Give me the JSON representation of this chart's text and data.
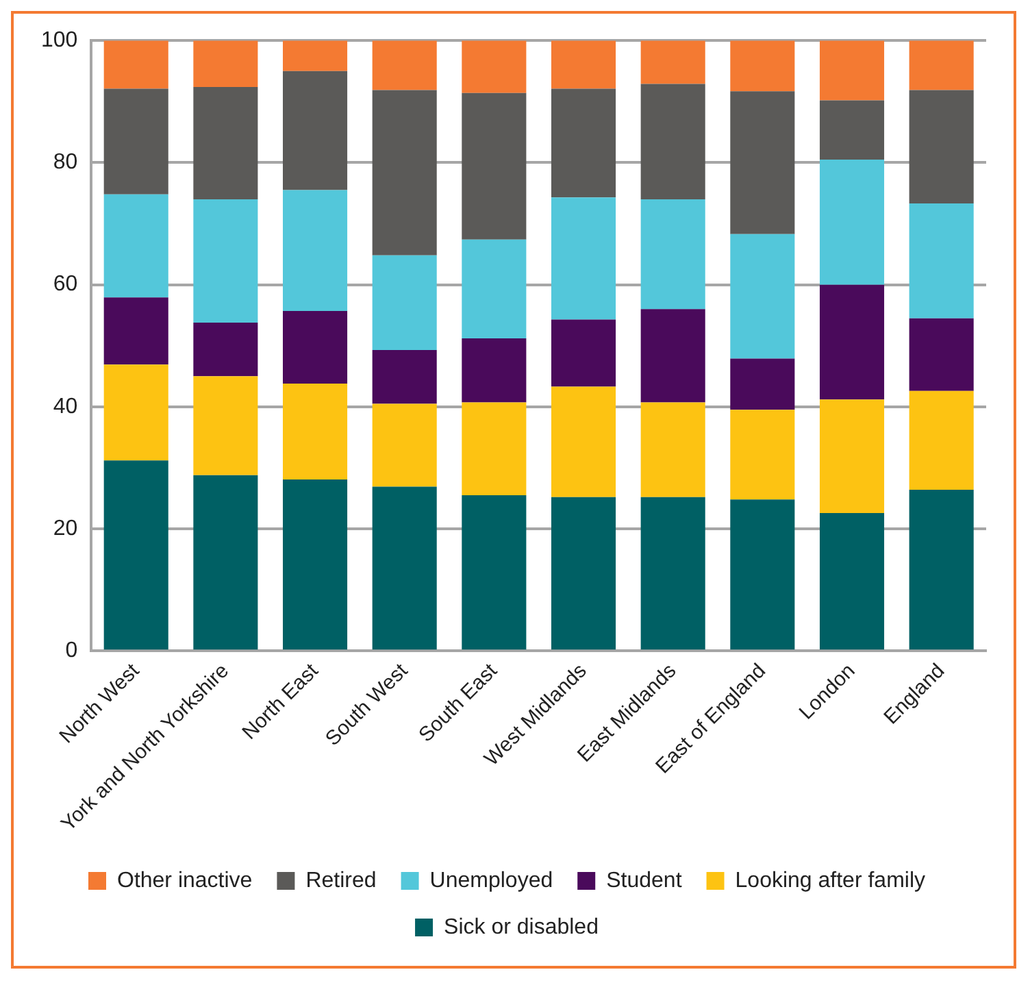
{
  "chart_data": {
    "type": "bar",
    "stacked": true,
    "categories": [
      "North West",
      "York and North Yorkshire",
      "North East",
      "South West",
      "South East",
      "West Midlands",
      "East Midlands",
      "East of England",
      "London",
      "England"
    ],
    "series": [
      {
        "name": "Sick or disabled",
        "color": "#006064",
        "values": [
          31.2,
          28.8,
          28.1,
          26.9,
          25.5,
          25.2,
          25.2,
          24.8,
          22.6,
          26.4
        ]
      },
      {
        "name": "Looking after family",
        "color": "#fdc312",
        "values": [
          15.7,
          16.2,
          15.7,
          13.6,
          15.2,
          18.1,
          15.5,
          14.7,
          18.6,
          16.2
        ]
      },
      {
        "name": "Student",
        "color": "#4a0a5b",
        "values": [
          11.0,
          8.8,
          11.9,
          8.8,
          10.5,
          11.0,
          15.3,
          8.4,
          18.8,
          11.9
        ]
      },
      {
        "name": "Unemployed",
        "color": "#53c7da",
        "values": [
          16.9,
          20.2,
          19.8,
          15.5,
          16.2,
          20.0,
          18.0,
          20.4,
          20.5,
          18.8
        ]
      },
      {
        "name": "Retired",
        "color": "#5b5a58",
        "values": [
          17.3,
          18.4,
          19.5,
          27.1,
          24.0,
          17.8,
          18.9,
          23.4,
          9.7,
          18.6
        ]
      },
      {
        "name": "Other inactive",
        "color": "#f47a32",
        "values": [
          7.9,
          7.6,
          5.0,
          8.1,
          8.6,
          7.9,
          7.1,
          8.3,
          9.8,
          8.1
        ]
      }
    ],
    "ylim": [
      0,
      100
    ],
    "yticks": [
      0,
      20,
      40,
      60,
      80,
      100
    ],
    "grid": "y",
    "legend": "bottom"
  }
}
